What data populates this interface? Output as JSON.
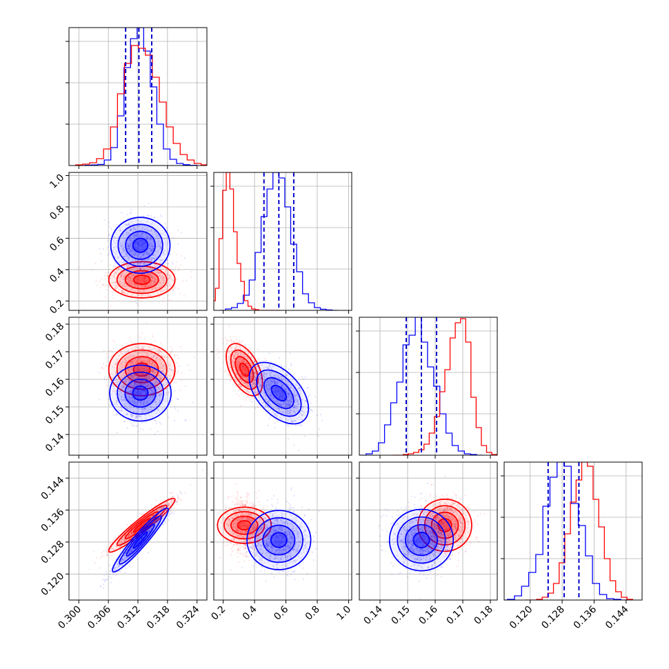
{
  "chart_data": {
    "type": "corner",
    "grid_lines": true,
    "colors": {
      "series_a": "#0000ff",
      "series_b": "#ff0000",
      "quantile_line": "#0000cc"
    },
    "parameters": [
      {
        "range": [
          0.298,
          0.326
        ],
        "ticks": [
          0.3,
          0.306,
          0.312,
          0.318,
          0.324
        ],
        "tick_labels": [
          "0.300",
          "0.306",
          "0.312",
          "0.318",
          "0.324"
        ]
      },
      {
        "range": [
          0.14,
          1.02
        ],
        "ticks": [
          0.2,
          0.4,
          0.6,
          0.8,
          1.0
        ],
        "tick_labels": [
          "0.2",
          "0.4",
          "0.6",
          "0.8",
          "1.0"
        ]
      },
      {
        "range": [
          0.1325,
          0.1825
        ],
        "ticks": [
          0.14,
          0.15,
          0.16,
          0.17,
          0.18
        ],
        "tick_labels": [
          "0.14",
          "0.15",
          "0.16",
          "0.17",
          "0.18"
        ]
      },
      {
        "range": [
          0.1135,
          0.148
        ],
        "ticks": [
          0.12,
          0.128,
          0.136,
          0.144
        ],
        "tick_labels": [
          "0.120",
          "0.128",
          "0.136",
          "0.144"
        ]
      }
    ],
    "series": [
      {
        "color": "#0000ff",
        "means": [
          0.3125,
          0.555,
          0.155,
          0.1285
        ],
        "sigmas": [
          0.0027,
          0.09,
          0.0053,
          0.0038
        ],
        "correlations": [
          [
            1,
            0,
            0,
            0.95
          ],
          [
            0,
            1,
            -0.5,
            0
          ],
          [
            0,
            -0.5,
            1,
            0
          ],
          [
            0.95,
            0,
            0,
            1
          ]
        ],
        "quantiles_16_50_84": [
          [
            0.3095,
            0.3122,
            0.3148
          ],
          [
            0.46,
            0.555,
            0.65
          ],
          [
            0.1495,
            0.155,
            0.1605
          ],
          [
            0.1245,
            0.1285,
            0.1322
          ]
        ],
        "hist_values": [
          [
            0.002,
            0.004,
            0.008,
            0.04,
            0.13,
            0.36,
            0.71,
            0.92,
            1.0,
            0.83,
            0.57,
            0.3,
            0.12,
            0.045,
            0.015,
            0.006,
            0.002
          ],
          [
            0,
            0.01,
            0.02,
            0.05,
            0.11,
            0.22,
            0.42,
            0.68,
            0.88,
            1.0,
            0.96,
            0.75,
            0.48,
            0.28,
            0.12,
            0.055,
            0.02,
            0.008,
            0.003,
            0
          ],
          [
            0,
            0.01,
            0.03,
            0.09,
            0.22,
            0.38,
            0.53,
            0.8,
            0.87,
            1.0,
            0.82,
            0.64,
            0.5,
            0.3,
            0.16,
            0.07,
            0.03,
            0.01,
            0.005,
            0
          ],
          [
            0,
            0.005,
            0.03,
            0.1,
            0.2,
            0.33,
            0.68,
            0.89,
            1.0,
            0.97,
            0.7,
            0.54,
            0.32,
            0.12,
            0.04,
            0.01,
            0.005,
            0
          ]
        ]
      },
      {
        "color": "#ff0000",
        "means": [
          0.3128,
          0.335,
          0.1635,
          0.1322
        ],
        "sigmas": [
          0.0032,
          0.055,
          0.0045,
          0.0032
        ],
        "correlations": [
          [
            1,
            0,
            0,
            0.95
          ],
          [
            0,
            1,
            -0.5,
            0
          ],
          [
            0,
            -0.5,
            1,
            0
          ],
          [
            0.95,
            0,
            0,
            1
          ]
        ],
        "hist_values": [
          [
            0.005,
            0.01,
            0.02,
            0.05,
            0.12,
            0.28,
            0.52,
            0.74,
            0.87,
            0.85,
            0.8,
            0.64,
            0.46,
            0.28,
            0.16,
            0.08,
            0.04,
            0.015,
            0.005
          ],
          [
            0,
            0.07,
            0.16,
            0.52,
            0.87,
            1.0,
            0.88,
            0.57,
            0.34,
            0.21,
            0.07,
            0.03,
            0.01,
            0.005,
            0,
            0,
            0,
            0,
            0,
            0
          ],
          [
            0,
            0,
            0.005,
            0.01,
            0.02,
            0.04,
            0.08,
            0.16,
            0.28,
            0.46,
            0.62,
            0.85,
            0.96,
            0.99,
            0.82,
            0.42,
            0.2,
            0.07,
            0.02,
            0.005
          ],
          [
            0,
            0,
            0.005,
            0.02,
            0.05,
            0.12,
            0.27,
            0.48,
            0.71,
            0.87,
            1.0,
            0.97,
            0.73,
            0.53,
            0.3,
            0.14,
            0.06,
            0.02,
            0.005
          ]
        ]
      }
    ]
  }
}
